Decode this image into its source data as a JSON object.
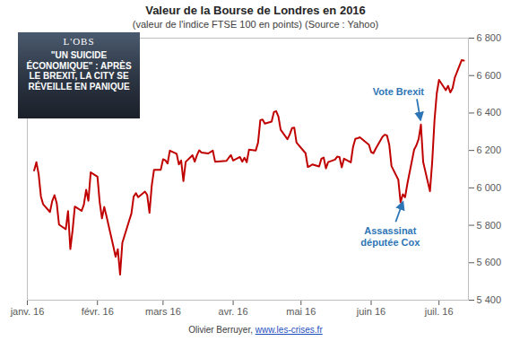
{
  "chart_data": {
    "type": "line",
    "title": "Valeur de la Bourse de Londres en 2016",
    "subtitle": "(valeur de l'indice FTSE 100 en points) (Source : Yahoo)",
    "caption": "Olivier Berruyer, www.les-crises.fr",
    "inset": {
      "brand": "L'OBS",
      "headline": "\"UN SUICIDE ÉCONOMIQUE\" : APRÈS LE BREXIT, LA CITY SE RÉVEILLE EN PANIQUE"
    },
    "color": "#c00000",
    "grid": false,
    "x": [
      4,
      5,
      6,
      7,
      8,
      11,
      12,
      13,
      14,
      15,
      18,
      19,
      20,
      21,
      22,
      25,
      26,
      27,
      28,
      29,
      32,
      33,
      34,
      35,
      36,
      39,
      40,
      41,
      42,
      43,
      46,
      47,
      48,
      49,
      50,
      53,
      54,
      55,
      56,
      57,
      60,
      61,
      62,
      63,
      64,
      67,
      68,
      69,
      70,
      71,
      74,
      75,
      76,
      77,
      78,
      81,
      82,
      83,
      84,
      89,
      90,
      91,
      92,
      95,
      96,
      97,
      98,
      99,
      102,
      103,
      104,
      105,
      106,
      109,
      110,
      111,
      112,
      113,
      116,
      117,
      118,
      119,
      120,
      124,
      125,
      126,
      127,
      130,
      131,
      132,
      133,
      134,
      137,
      138,
      139,
      140,
      141,
      144,
      145,
      146,
      147,
      148,
      152,
      153,
      154,
      155,
      158,
      159,
      160,
      161,
      162,
      165,
      166,
      167,
      168,
      169,
      172,
      173,
      174,
      175,
      176,
      179,
      180,
      181,
      182,
      183,
      186,
      187,
      188,
      189,
      190,
      193,
      194
    ],
    "values": [
      6093,
      6137,
      6073,
      5954,
      5912,
      5871,
      5929,
      5961,
      5918,
      5804,
      5779,
      5876,
      5673,
      5773,
      5900,
      5877,
      5911,
      5990,
      5931,
      6083,
      6060,
      5922,
      5837,
      5898,
      5848,
      5689,
      5632,
      5672,
      5537,
      5707,
      5824,
      5862,
      5953,
      5972,
      5950,
      5980,
      5962,
      5867,
      6012,
      6097,
      6097,
      6153,
      6147,
      6130,
      6199,
      6182,
      6125,
      6146,
      6036,
      6139,
      6174,
      6140,
      6175,
      6201,
      6189,
      6184,
      6192,
      6199,
      6140,
      6144,
      6160,
      6175,
      6146,
      6165,
      6140,
      6161,
      6137,
      6204,
      6200,
      6242,
      6362,
      6365,
      6343,
      6354,
      6405,
      6410,
      6381,
      6310,
      6260,
      6285,
      6319,
      6322,
      6242,
      6185,
      6112,
      6117,
      6125,
      6114,
      6156,
      6162,
      6104,
      6138,
      6151,
      6167,
      6165,
      6110,
      6156,
      6136,
      6219,
      6262,
      6265,
      6270,
      6231,
      6191,
      6185,
      6209,
      6273,
      6284,
      6280,
      6231,
      6116,
      6044,
      5923,
      5966,
      5950,
      6021,
      6204,
      6227,
      6261,
      6338,
      6138,
      5982,
      6140,
      6360,
      6504,
      6577,
      6522,
      6545,
      6510,
      6533,
      6590,
      6682,
      6680
    ],
    "xlim": [
      1,
      196
    ],
    "xticks": [
      {
        "value": 1,
        "label": "janv. 16"
      },
      {
        "value": 32,
        "label": "févr. 16"
      },
      {
        "value": 61,
        "label": "mars 16"
      },
      {
        "value": 92,
        "label": "avr. 16"
      },
      {
        "value": 122,
        "label": "mai 16"
      },
      {
        "value": 153,
        "label": "juin 16"
      },
      {
        "value": 183,
        "label": "juil. 16"
      }
    ],
    "ylim": [
      5400,
      6800
    ],
    "yticks": [
      {
        "value": 5400,
        "label": "5 400"
      },
      {
        "value": 5600,
        "label": "5 600"
      },
      {
        "value": 5800,
        "label": "5 800"
      },
      {
        "value": 6000,
        "label": "6 000"
      },
      {
        "value": 6200,
        "label": "6 200"
      },
      {
        "value": 6400,
        "label": "6 400"
      },
      {
        "value": 6600,
        "label": "6 600"
      },
      {
        "value": 6800,
        "label": "6 800"
      }
    ],
    "annotations": [
      {
        "text": "Vote Brexit",
        "x": 175,
        "y": 6338
      },
      {
        "text": "Assassinat députée Cox",
        "x": 168,
        "y": 5950
      }
    ]
  }
}
